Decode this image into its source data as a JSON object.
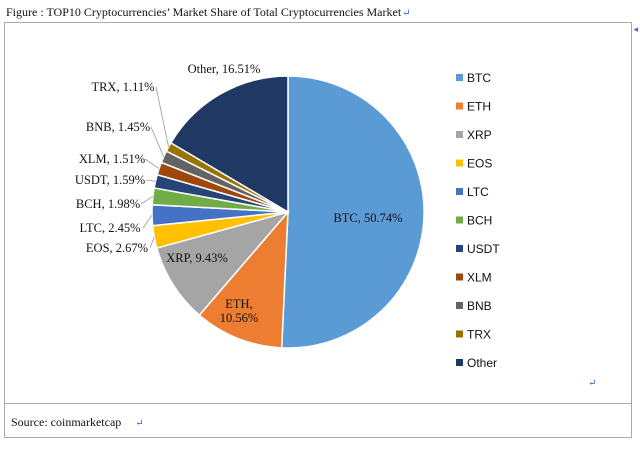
{
  "figure_title": "Figure : TOP10 Cryptocurrencies’ Market Share of Total Cryptocurrencies Market",
  "source_text": "Source: coinmarketcap",
  "chart_data": {
    "type": "pie",
    "slices": [
      {
        "name": "BTC",
        "value": 50.74,
        "label": "BTC, 50.74%",
        "color": "#5b9bd5"
      },
      {
        "name": "ETH",
        "value": 10.56,
        "label": "ETH,\n10.56%",
        "color": "#ed7d31"
      },
      {
        "name": "XRP",
        "value": 9.43,
        "label": "XRP, 9.43%",
        "color": "#a5a5a5"
      },
      {
        "name": "EOS",
        "value": 2.67,
        "label": "EOS, 2.67%",
        "color": "#ffc000"
      },
      {
        "name": "LTC",
        "value": 2.45,
        "label": "LTC, 2.45%",
        "color": "#4472c4"
      },
      {
        "name": "BCH",
        "value": 1.98,
        "label": "BCH, 1.98%",
        "color": "#70ad47"
      },
      {
        "name": "USDT",
        "value": 1.59,
        "label": "USDT, 1.59%",
        "color": "#264478"
      },
      {
        "name": "XLM",
        "value": 1.51,
        "label": "XLM, 1.51%",
        "color": "#9e480e"
      },
      {
        "name": "BNB",
        "value": 1.45,
        "label": "BNB, 1.45%",
        "color": "#636363"
      },
      {
        "name": "TRX",
        "value": 1.11,
        "label": "TRX, 1.11%",
        "color": "#997300"
      },
      {
        "name": "Other",
        "value": 16.51,
        "label": "Other, 16.51%",
        "color": "#203864"
      }
    ],
    "legend_position": "right"
  }
}
